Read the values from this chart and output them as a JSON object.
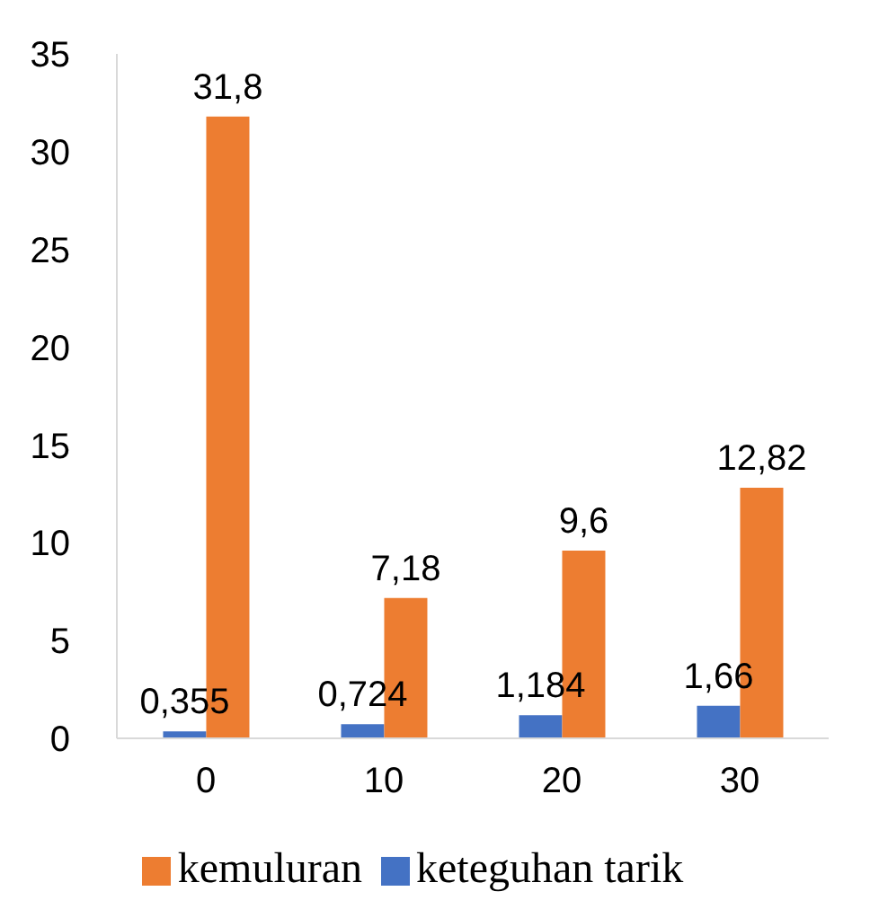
{
  "chart_data": {
    "type": "bar",
    "categories": [
      "0",
      "10",
      "20",
      "30"
    ],
    "series": [
      {
        "name": "keteguhan tarik",
        "color": "#4472c4",
        "values": [
          0.355,
          0.724,
          1.184,
          1.66
        ],
        "value_labels": [
          "0,355",
          "0,724",
          "1,184",
          "1,66"
        ]
      },
      {
        "name": "kemuluran",
        "color": "#ed7d31",
        "values": [
          31.8,
          7.18,
          9.6,
          12.82
        ],
        "value_labels": [
          "31,8",
          "7,18",
          "9,6",
          "12,82"
        ]
      }
    ],
    "ylim": [
      0,
      35
    ],
    "yticks": [
      0,
      5,
      10,
      15,
      20,
      25,
      30,
      35
    ],
    "grid": false,
    "legend": "bottom"
  }
}
